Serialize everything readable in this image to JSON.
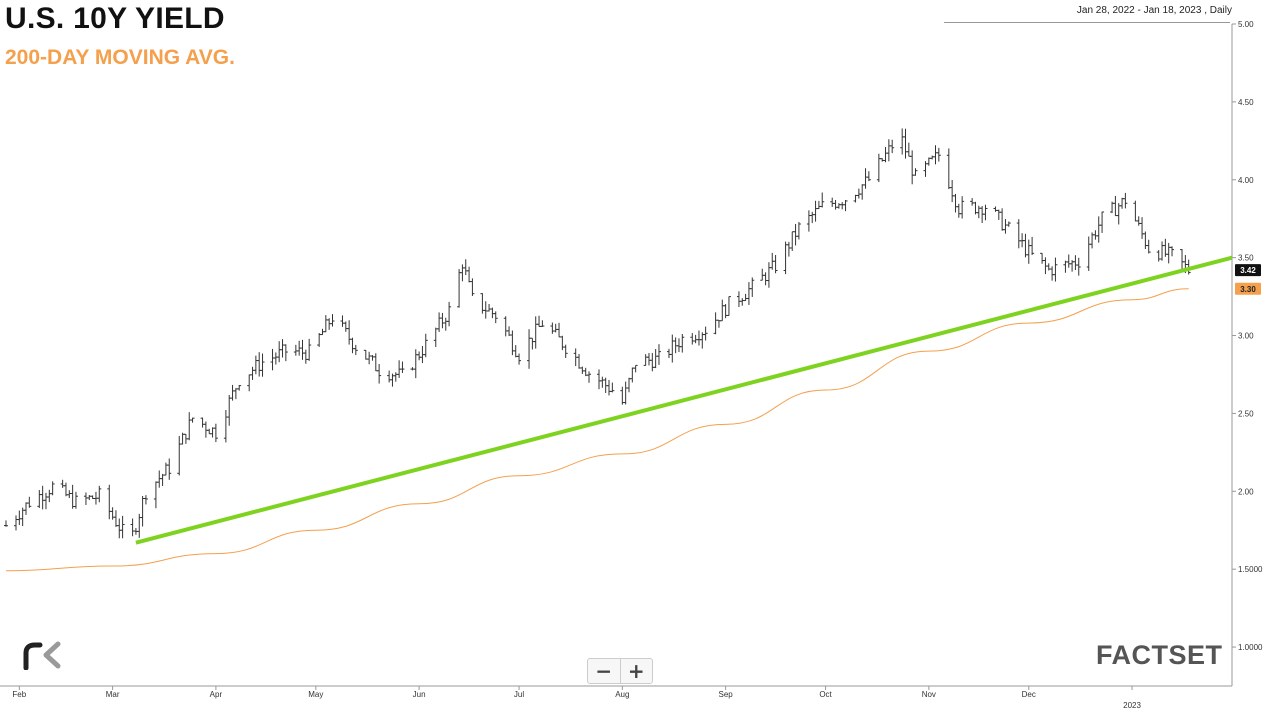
{
  "header": {
    "title": "U.S. 10Y YIELD",
    "subtitle": "200-DAY MOVING AVG.",
    "date_range": "Jan 28, 2022 - Jan 18, 2023 , Daily"
  },
  "zoom": {
    "minus": "−",
    "plus": "+"
  },
  "branding": {
    "logo_right": "FACTSET",
    "logo_left_icon": "rk-logo"
  },
  "chart_data": {
    "type": "ohlc",
    "title": "U.S. 10Y YIELD",
    "subtitle": "200-DAY MOVING AVG.",
    "xlabel": "",
    "ylabel": "",
    "y_ticks": [
      "5.00",
      "4.50",
      "4.00",
      "3.50",
      "3.00",
      "2.50",
      "2.00",
      "1.5000",
      "1.0000"
    ],
    "ylim": [
      0.75,
      5.0
    ],
    "x_ticks": [
      "Feb",
      "Mar",
      "Apr",
      "May",
      "Jun",
      "Jul",
      "Aug",
      "Sep",
      "Oct",
      "Nov",
      "Dec",
      "2023"
    ],
    "x_tick_dates": [
      "2022-02-01",
      "2022-03-01",
      "2022-04-01",
      "2022-05-01",
      "2022-06-01",
      "2022-07-01",
      "2022-08-01",
      "2022-09-01",
      "2022-10-01",
      "2022-11-01",
      "2022-12-01",
      "2023-01-01"
    ],
    "xlim": [
      "2022-01-28",
      "2023-01-31"
    ],
    "price_series": {
      "name": "U.S. 10Y Yield",
      "color": "#333333",
      "dates": [
        "2022-01-28",
        "2022-02-04",
        "2022-02-11",
        "2022-02-18",
        "2022-02-25",
        "2022-03-04",
        "2022-03-07",
        "2022-03-11",
        "2022-03-18",
        "2022-03-25",
        "2022-04-01",
        "2022-04-08",
        "2022-04-15",
        "2022-04-22",
        "2022-04-29",
        "2022-05-06",
        "2022-05-13",
        "2022-05-20",
        "2022-05-27",
        "2022-06-03",
        "2022-06-10",
        "2022-06-14",
        "2022-06-17",
        "2022-06-24",
        "2022-07-01",
        "2022-07-08",
        "2022-07-15",
        "2022-07-22",
        "2022-07-29",
        "2022-08-01",
        "2022-08-05",
        "2022-08-12",
        "2022-08-19",
        "2022-08-26",
        "2022-09-02",
        "2022-09-09",
        "2022-09-16",
        "2022-09-23",
        "2022-09-30",
        "2022-10-07",
        "2022-10-14",
        "2022-10-21",
        "2022-10-24",
        "2022-10-28",
        "2022-11-04",
        "2022-11-10",
        "2022-11-18",
        "2022-11-25",
        "2022-12-02",
        "2022-12-07",
        "2022-12-16",
        "2022-12-23",
        "2022-12-30",
        "2023-01-06",
        "2023-01-13",
        "2023-01-18"
      ],
      "values": [
        1.78,
        1.93,
        2.03,
        1.93,
        1.97,
        1.74,
        1.72,
        2.0,
        2.15,
        2.47,
        2.38,
        2.72,
        2.83,
        2.9,
        2.89,
        3.12,
        2.93,
        2.78,
        2.74,
        2.94,
        3.16,
        3.47,
        3.23,
        3.13,
        2.88,
        3.08,
        2.93,
        2.76,
        2.65,
        2.57,
        2.83,
        2.85,
        2.98,
        3.04,
        3.2,
        3.31,
        3.45,
        3.69,
        3.83,
        3.88,
        4.0,
        4.22,
        4.25,
        4.01,
        4.16,
        3.82,
        3.83,
        3.68,
        3.51,
        3.42,
        3.48,
        3.75,
        3.87,
        3.56,
        3.51,
        3.42
      ]
    },
    "moving_average": {
      "name": "200-Day Moving Avg.",
      "color": "#f4a04d",
      "dates": [
        "2022-01-28",
        "2022-03-01",
        "2022-04-01",
        "2022-05-01",
        "2022-06-01",
        "2022-07-01",
        "2022-08-01",
        "2022-09-01",
        "2022-10-01",
        "2022-11-01",
        "2022-12-01",
        "2023-01-01",
        "2023-01-18"
      ],
      "values": [
        1.49,
        1.52,
        1.6,
        1.75,
        1.92,
        2.1,
        2.24,
        2.43,
        2.65,
        2.9,
        3.08,
        3.23,
        3.3
      ]
    },
    "trendline": {
      "color": "#7ed321",
      "start": {
        "date": "2022-03-08",
        "value": 1.67
      },
      "through": {
        "date": "2022-08-02",
        "value": 2.5
      },
      "end": {
        "date": "2023-01-31",
        "value": 3.5
      }
    },
    "last_value_labels": [
      {
        "text": "3.42",
        "bg": "#111111",
        "fg": "#ffffff"
      },
      {
        "text": "3.30",
        "bg": "#f4a04d",
        "fg": "#222222"
      }
    ],
    "grid": false,
    "legend": "none"
  }
}
